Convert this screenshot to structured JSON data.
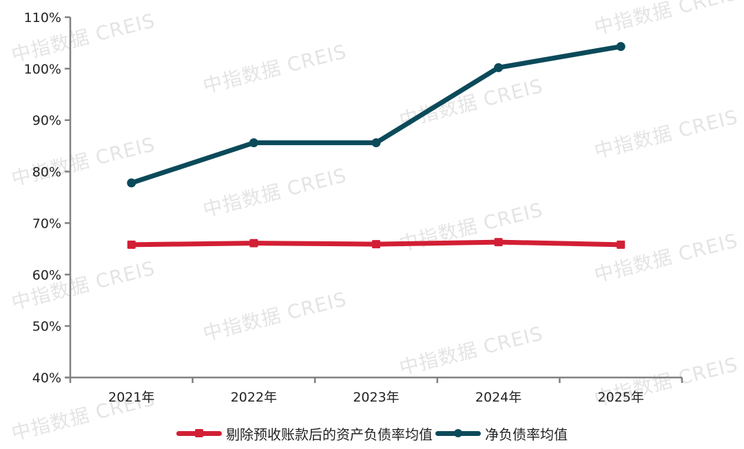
{
  "chart_data": {
    "type": "line",
    "title": "",
    "xlabel": "",
    "ylabel": "",
    "categories": [
      "2021年",
      "2022年",
      "2023年",
      "2024年",
      "2025年"
    ],
    "y_ticks": [
      "40%",
      "50%",
      "60%",
      "70%",
      "80%",
      "90%",
      "100%",
      "110%"
    ],
    "ylim": [
      40,
      110
    ],
    "grid": false,
    "legend_position": "bottom",
    "series": [
      {
        "name": "剔除预收账款后的资产负债率均值",
        "color": "#d21f35",
        "marker": "square",
        "values": [
          65.8,
          66.1,
          65.9,
          66.3,
          65.8
        ]
      },
      {
        "name": "净负债率均值",
        "color": "#0b4a5a",
        "marker": "circle",
        "values": [
          77.8,
          85.6,
          85.6,
          100.2,
          104.3
        ]
      }
    ]
  },
  "legend": {
    "items": [
      {
        "label": "剔除预收账款后的资产负债率均值",
        "color": "#d21f35"
      },
      {
        "label": "净负债率均值",
        "color": "#0b4a5a"
      }
    ]
  },
  "watermark": {
    "text": "中指数据  CREIS"
  },
  "colors": {
    "axis": "#808080",
    "text": "#222222"
  }
}
